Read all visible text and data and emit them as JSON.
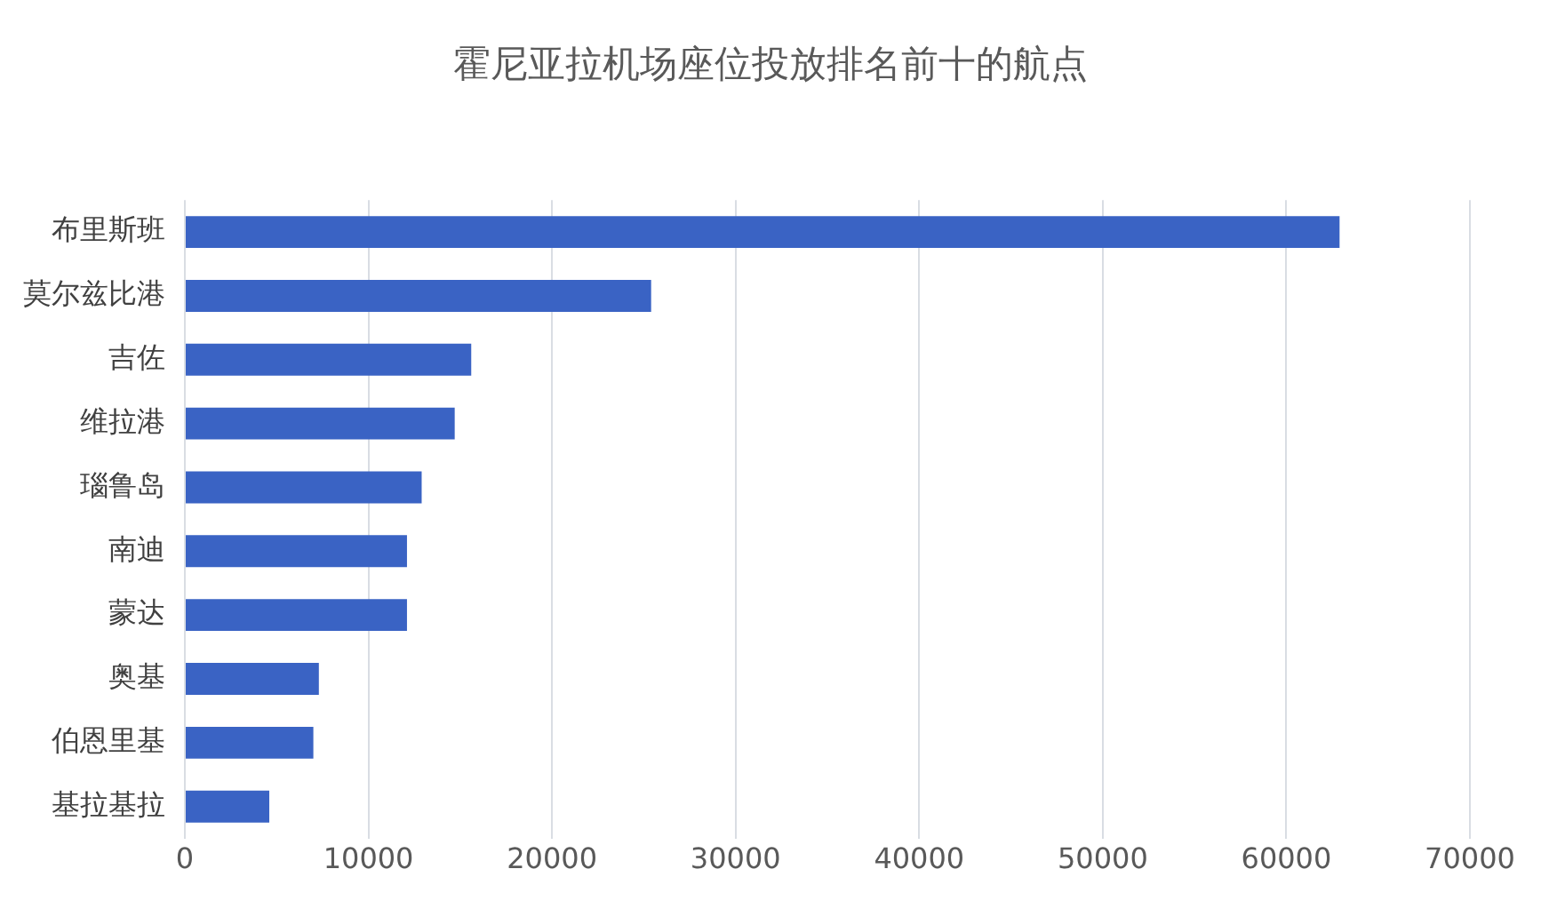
{
  "chart_data": {
    "type": "bar",
    "orientation": "horizontal",
    "title": "霍尼亚拉机场座位投放排名前十的航点",
    "categories": [
      "布里斯班",
      "莫尔兹比港",
      "吉佐",
      "维拉港",
      "瑙鲁岛",
      "南迪",
      "蒙达",
      "奥基",
      "伯恩里基",
      "基拉基拉"
    ],
    "values": [
      62900,
      25400,
      15600,
      14700,
      12900,
      12100,
      12100,
      7300,
      7000,
      4600
    ],
    "color": "#3a63c4",
    "xlim": [
      0,
      70000
    ],
    "xticks": [
      0,
      10000,
      20000,
      30000,
      40000,
      50000,
      60000,
      70000
    ],
    "grid": "x",
    "legend": false
  }
}
